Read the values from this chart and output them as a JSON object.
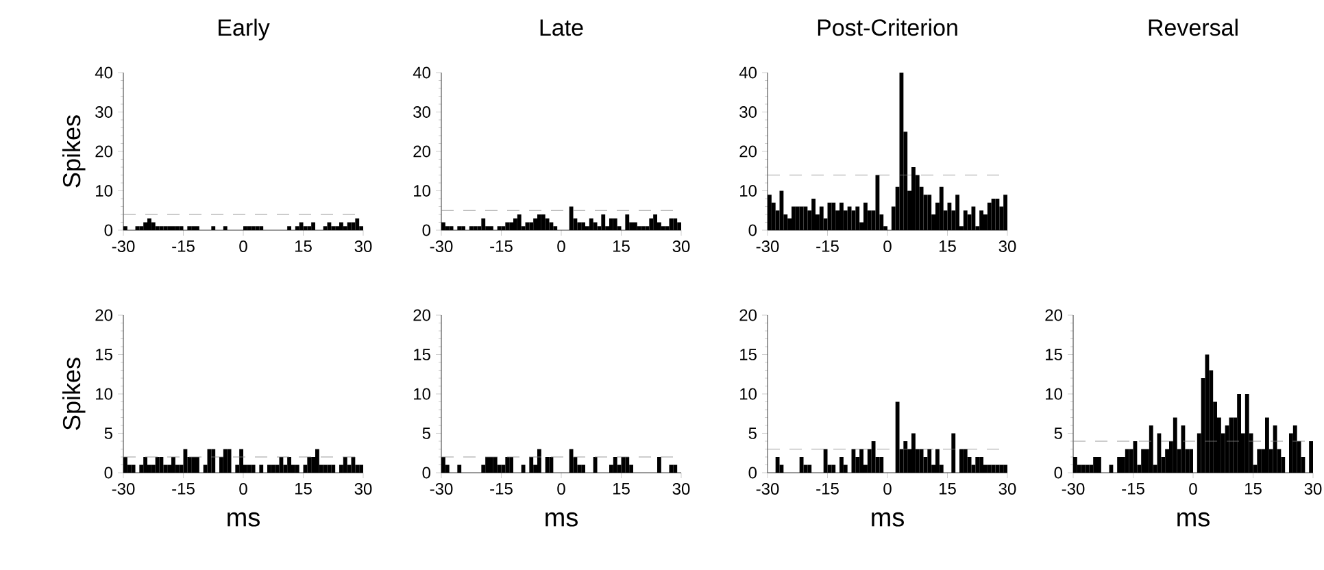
{
  "chart_data": [
    {
      "type": "histogram",
      "title": "Early",
      "ylabel": "Spikes",
      "color": "#000000",
      "bins": [
        -30,
        -29,
        -28,
        -27,
        -26,
        -25,
        -24,
        -23,
        -22,
        -21,
        -20,
        -19,
        -18,
        -17,
        -16,
        -15,
        -14,
        -13,
        -12,
        -11,
        -10,
        -9,
        -8,
        -7,
        -6,
        -5,
        -4,
        -3,
        -2,
        -1,
        0,
        1,
        2,
        3,
        4,
        5,
        6,
        7,
        8,
        9,
        10,
        11,
        12,
        13,
        14,
        15,
        16,
        17,
        18,
        19,
        20,
        21,
        22,
        23,
        24,
        25,
        26,
        27,
        28,
        29,
        30
      ],
      "values": [
        1,
        0,
        0,
        1,
        1,
        2,
        3,
        2,
        1,
        1,
        1,
        1,
        1,
        1,
        1,
        0,
        1,
        1,
        1,
        0,
        0,
        0,
        1,
        0,
        0,
        1,
        0,
        0,
        0,
        0,
        1,
        1,
        1,
        1,
        1,
        0,
        0,
        0,
        0,
        0,
        0,
        1,
        0,
        1,
        2,
        1,
        1,
        2,
        0,
        0,
        1,
        2,
        1,
        1,
        2,
        1,
        2,
        2,
        3,
        1
      ],
      "xlim": [
        -30,
        30
      ],
      "xticks": [
        -30,
        -15,
        0,
        15,
        30
      ],
      "ylim": [
        0,
        40
      ],
      "yticks": [
        0,
        10,
        20,
        30,
        40
      ],
      "ref_lines": [
        {
          "axis": "y",
          "value": 4,
          "color": "#808080",
          "line_style": "dashed"
        }
      ]
    },
    {
      "type": "histogram",
      "title": "Late",
      "color": "#000000",
      "bins": [
        -30,
        -29,
        -28,
        -27,
        -26,
        -25,
        -24,
        -23,
        -22,
        -21,
        -20,
        -19,
        -18,
        -17,
        -16,
        -15,
        -14,
        -13,
        -12,
        -11,
        -10,
        -9,
        -8,
        -7,
        -6,
        -5,
        -4,
        -3,
        -2,
        -1,
        0,
        1,
        2,
        3,
        4,
        5,
        6,
        7,
        8,
        9,
        10,
        11,
        12,
        13,
        14,
        15,
        16,
        17,
        18,
        19,
        20,
        21,
        22,
        23,
        24,
        25,
        26,
        27,
        28,
        29,
        30
      ],
      "values": [
        2,
        1,
        1,
        0,
        1,
        1,
        0,
        1,
        1,
        1,
        3,
        1,
        1,
        0,
        1,
        1,
        2,
        2,
        3,
        4,
        1,
        2,
        2,
        3,
        4,
        4,
        3,
        2,
        1,
        0,
        0,
        0,
        6,
        3,
        2,
        2,
        1,
        3,
        2,
        1,
        4,
        1,
        3,
        3,
        1,
        0,
        4,
        2,
        2,
        1,
        1,
        1,
        3,
        4,
        2,
        1,
        1,
        3,
        3,
        2
      ],
      "xlim": [
        -30,
        30
      ],
      "xticks": [
        -30,
        -15,
        0,
        15,
        30
      ],
      "ylim": [
        0,
        40
      ],
      "yticks": [
        0,
        10,
        20,
        30,
        40
      ],
      "ref_lines": [
        {
          "axis": "y",
          "value": 5,
          "color": "#808080",
          "line_style": "dashed"
        }
      ]
    },
    {
      "type": "histogram",
      "title": "Post-Criterion",
      "color": "#000000",
      "bins": [
        -30,
        -29,
        -28,
        -27,
        -26,
        -25,
        -24,
        -23,
        -22,
        -21,
        -20,
        -19,
        -18,
        -17,
        -16,
        -15,
        -14,
        -13,
        -12,
        -11,
        -10,
        -9,
        -8,
        -7,
        -6,
        -5,
        -4,
        -3,
        -2,
        -1,
        0,
        1,
        2,
        3,
        4,
        5,
        6,
        7,
        8,
        9,
        10,
        11,
        12,
        13,
        14,
        15,
        16,
        17,
        18,
        19,
        20,
        21,
        22,
        23,
        24,
        25,
        26,
        27,
        28,
        29,
        30
      ],
      "values": [
        9,
        7,
        5,
        10,
        4,
        3,
        6,
        6,
        6,
        6,
        5,
        8,
        4,
        6,
        3,
        7,
        7,
        5,
        7,
        5,
        6,
        5,
        6,
        2,
        7,
        5,
        5,
        14,
        4,
        1,
        0,
        6,
        11,
        40,
        25,
        10,
        16,
        14,
        11,
        9,
        9,
        4,
        7,
        11,
        5,
        7,
        5,
        9,
        1,
        5,
        4,
        6,
        1,
        5,
        4,
        7,
        8,
        8,
        6,
        9
      ],
      "xlim": [
        -30,
        30
      ],
      "xticks": [
        -30,
        -15,
        0,
        15,
        30
      ],
      "ylim": [
        0,
        40
      ],
      "yticks": [
        0,
        10,
        20,
        30,
        40
      ],
      "ref_lines": [
        {
          "axis": "y",
          "value": 14,
          "color": "#808080",
          "line_style": "dashed"
        }
      ]
    },
    {
      "type": "histogram",
      "ylabel": "Spikes",
      "xlabel": "ms",
      "color": "#000000",
      "bins": [
        -30,
        -29,
        -28,
        -27,
        -26,
        -25,
        -24,
        -23,
        -22,
        -21,
        -20,
        -19,
        -18,
        -17,
        -16,
        -15,
        -14,
        -13,
        -12,
        -11,
        -10,
        -9,
        -8,
        -7,
        -6,
        -5,
        -4,
        -3,
        -2,
        -1,
        0,
        1,
        2,
        3,
        4,
        5,
        6,
        7,
        8,
        9,
        10,
        11,
        12,
        13,
        14,
        15,
        16,
        17,
        18,
        19,
        20,
        21,
        22,
        23,
        24,
        25,
        26,
        27,
        28,
        29,
        30
      ],
      "values": [
        2,
        1,
        1,
        0,
        1,
        2,
        1,
        1,
        2,
        2,
        1,
        1,
        2,
        1,
        1,
        3,
        2,
        2,
        2,
        0,
        1,
        3,
        3,
        0,
        2,
        3,
        3,
        0,
        1,
        3,
        1,
        1,
        1,
        0,
        1,
        0,
        1,
        1,
        1,
        2,
        1,
        2,
        1,
        1,
        0,
        1,
        2,
        2,
        3,
        1,
        1,
        1,
        1,
        0,
        1,
        2,
        1,
        2,
        1,
        1
      ],
      "xlim": [
        -30,
        30
      ],
      "xticks": [
        -30,
        -15,
        0,
        15,
        30
      ],
      "ylim": [
        0,
        20
      ],
      "yticks": [
        0,
        5,
        10,
        15,
        20
      ],
      "ref_lines": [
        {
          "axis": "y",
          "value": 2,
          "color": "#808080",
          "line_style": "dashed"
        }
      ]
    },
    {
      "type": "histogram",
      "xlabel": "ms",
      "color": "#000000",
      "bins": [
        -30,
        -29,
        -28,
        -27,
        -26,
        -25,
        -24,
        -23,
        -22,
        -21,
        -20,
        -19,
        -18,
        -17,
        -16,
        -15,
        -14,
        -13,
        -12,
        -11,
        -10,
        -9,
        -8,
        -7,
        -6,
        -5,
        -4,
        -3,
        -2,
        -1,
        0,
        1,
        2,
        3,
        4,
        5,
        6,
        7,
        8,
        9,
        10,
        11,
        12,
        13,
        14,
        15,
        16,
        17,
        18,
        19,
        20,
        21,
        22,
        23,
        24,
        25,
        26,
        27,
        28,
        29,
        30
      ],
      "values": [
        2,
        1,
        0,
        0,
        1,
        0,
        0,
        0,
        0,
        0,
        1,
        2,
        2,
        2,
        1,
        1,
        2,
        2,
        0,
        0,
        1,
        0,
        2,
        1,
        3,
        0,
        2,
        2,
        0,
        0,
        0,
        0,
        3,
        2,
        1,
        1,
        0,
        0,
        2,
        0,
        0,
        0,
        1,
        2,
        1,
        2,
        2,
        1,
        0,
        0,
        0,
        0,
        0,
        0,
        2,
        0,
        0,
        1,
        1,
        0
      ],
      "xlim": [
        -30,
        30
      ],
      "xticks": [
        -30,
        -15,
        0,
        15,
        30
      ],
      "ylim": [
        0,
        20
      ],
      "yticks": [
        0,
        5,
        10,
        15,
        20
      ],
      "ref_lines": [
        {
          "axis": "y",
          "value": 2,
          "color": "#808080",
          "line_style": "dashed"
        }
      ]
    },
    {
      "type": "histogram",
      "xlabel": "ms",
      "color": "#000000",
      "bins": [
        -30,
        -29,
        -28,
        -27,
        -26,
        -25,
        -24,
        -23,
        -22,
        -21,
        -20,
        -19,
        -18,
        -17,
        -16,
        -15,
        -14,
        -13,
        -12,
        -11,
        -10,
        -9,
        -8,
        -7,
        -6,
        -5,
        -4,
        -3,
        -2,
        -1,
        0,
        1,
        2,
        3,
        4,
        5,
        6,
        7,
        8,
        9,
        10,
        11,
        12,
        13,
        14,
        15,
        16,
        17,
        18,
        19,
        20,
        21,
        22,
        23,
        24,
        25,
        26,
        27,
        28,
        29,
        30
      ],
      "values": [
        0,
        0,
        2,
        1,
        0,
        0,
        0,
        0,
        2,
        1,
        1,
        0,
        0,
        0,
        3,
        1,
        1,
        0,
        2,
        1,
        0,
        3,
        2,
        3,
        1,
        3,
        4,
        2,
        2,
        0,
        0,
        0,
        9,
        3,
        4,
        3,
        5,
        3,
        3,
        2,
        3,
        1,
        3,
        1,
        0,
        0,
        5,
        0,
        3,
        3,
        2,
        1,
        2,
        2,
        1,
        1,
        1,
        1,
        1,
        1
      ],
      "xlim": [
        -30,
        30
      ],
      "xticks": [
        -30,
        -15,
        0,
        15,
        30
      ],
      "ylim": [
        0,
        20
      ],
      "yticks": [
        0,
        5,
        10,
        15,
        20
      ],
      "ref_lines": [
        {
          "axis": "y",
          "value": 3,
          "color": "#808080",
          "line_style": "dashed"
        }
      ]
    },
    {
      "type": "histogram",
      "title": "Reversal",
      "xlabel": "ms",
      "color": "#000000",
      "bins": [
        -30,
        -29,
        -28,
        -27,
        -26,
        -25,
        -24,
        -23,
        -22,
        -21,
        -20,
        -19,
        -18,
        -17,
        -16,
        -15,
        -14,
        -13,
        -12,
        -11,
        -10,
        -9,
        -8,
        -7,
        -6,
        -5,
        -4,
        -3,
        -2,
        -1,
        0,
        1,
        2,
        3,
        4,
        5,
        6,
        7,
        8,
        9,
        10,
        11,
        12,
        13,
        14,
        15,
        16,
        17,
        18,
        19,
        20,
        21,
        22,
        23,
        24,
        25,
        26,
        27,
        28,
        29,
        30
      ],
      "values": [
        2,
        1,
        1,
        1,
        1,
        2,
        2,
        0,
        0,
        1,
        0,
        2,
        2,
        3,
        3,
        4,
        1,
        3,
        3,
        6,
        1,
        5,
        2,
        3,
        4,
        7,
        3,
        6,
        3,
        3,
        0,
        5,
        12,
        15,
        13,
        9,
        7,
        5,
        6,
        7,
        7,
        10,
        5,
        10,
        5,
        1,
        3,
        3,
        7,
        3,
        6,
        3,
        2,
        0,
        5,
        6,
        4,
        2,
        0,
        4
      ],
      "xlim": [
        -30,
        30
      ],
      "xticks": [
        -30,
        -15,
        0,
        15,
        30
      ],
      "ylim": [
        0,
        20
      ],
      "yticks": [
        0,
        5,
        10,
        15,
        20
      ],
      "ref_lines": [
        {
          "axis": "y",
          "value": 4,
          "color": "#808080",
          "line_style": "dashed"
        }
      ]
    }
  ]
}
